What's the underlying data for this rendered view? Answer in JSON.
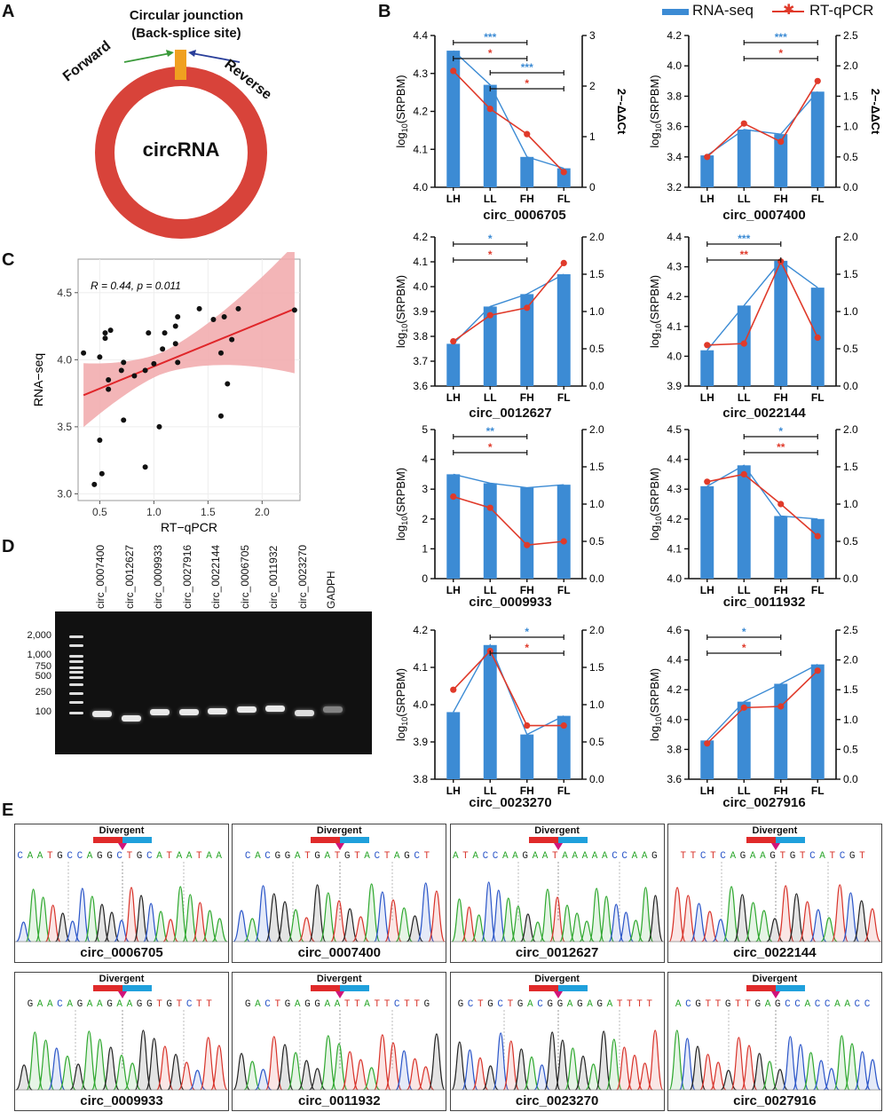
{
  "panels": {
    "A": "A",
    "B": "B",
    "C": "C",
    "D": "D",
    "E": "E"
  },
  "panelA": {
    "title1": "Circular jounction",
    "title2": "(Back-splice site)",
    "forward": "Forward",
    "reverse": "Reverse",
    "center": "circRNA",
    "colors": {
      "ring": "#d8433a",
      "site": "#f0a020",
      "forward": "#3a9a3a",
      "reverse": "#2a3f9a"
    }
  },
  "legend": {
    "rnaseq": "RNA-seq",
    "rtqpcr": "RT-qPCR"
  },
  "colors": {
    "bar": "#3c8bd4",
    "line": "#e03a2a",
    "sigBlue": "#3c8bd4",
    "sigRed": "#e03a2a"
  },
  "chart_data": [
    {
      "type": "bar+line",
      "title": "circ_0006705",
      "categories": [
        "LH",
        "LL",
        "FH",
        "FL"
      ],
      "ylabel": "log10(SRPBM)",
      "y2label": "2^-ΔΔCt",
      "show_y2label": true,
      "ylim": [
        4.0,
        4.4
      ],
      "yticks": [
        "4.0",
        "4.1",
        "4.2",
        "4.3",
        "4.4"
      ],
      "y2lim": [
        0,
        3
      ],
      "y2ticks": [
        "0",
        "1",
        "2",
        "3"
      ],
      "bars": [
        4.36,
        4.27,
        4.08,
        4.05
      ],
      "rnaLine": [
        4.36,
        4.27,
        4.08,
        4.05
      ],
      "qpcr": [
        2.3,
        1.55,
        1.05,
        0.3
      ],
      "sig": [
        {
          "from": 0,
          "to": 2,
          "blue": "***",
          "red": "*"
        },
        {
          "from": 1,
          "to": 3,
          "blue": "***",
          "red": "*"
        }
      ]
    },
    {
      "type": "bar+line",
      "title": "circ_0007400",
      "categories": [
        "LH",
        "LL",
        "FH",
        "FL"
      ],
      "ylabel": "log10(SRPBM)",
      "y2label": "2^-ΔΔCt",
      "show_y2label": true,
      "ylim": [
        3.2,
        4.2
      ],
      "yticks": [
        "3.2",
        "3.4",
        "3.6",
        "3.8",
        "4.0",
        "4.2"
      ],
      "y2lim": [
        0,
        2.5
      ],
      "y2ticks": [
        "0.0",
        "0.5",
        "1.0",
        "1.5",
        "2.0",
        "2.5"
      ],
      "bars": [
        3.41,
        3.58,
        3.55,
        3.83
      ],
      "rnaLine": [
        3.41,
        3.58,
        3.55,
        3.83
      ],
      "qpcr": [
        0.5,
        1.05,
        0.75,
        1.75
      ],
      "sig": [
        {
          "from": 1,
          "to": 3,
          "blue": "***",
          "red": "*"
        }
      ]
    },
    {
      "type": "bar+line",
      "title": "circ_0012627",
      "categories": [
        "LH",
        "LL",
        "FH",
        "FL"
      ],
      "ylabel": "log10(SRPBM)",
      "y2label": "",
      "show_y2label": false,
      "ylim": [
        3.6,
        4.2
      ],
      "yticks": [
        "3.6",
        "3.7",
        "3.8",
        "3.9",
        "4.0",
        "4.1",
        "4.2"
      ],
      "y2lim": [
        0,
        2.0
      ],
      "y2ticks": [
        "0.0",
        "0.5",
        "1.0",
        "1.5",
        "2.0"
      ],
      "bars": [
        3.77,
        3.92,
        3.97,
        4.05
      ],
      "rnaLine": [
        3.77,
        3.92,
        3.97,
        4.05
      ],
      "qpcr": [
        0.6,
        0.95,
        1.05,
        1.65
      ],
      "sig": [
        {
          "from": 0,
          "to": 2,
          "blue": "*",
          "red": "*"
        }
      ]
    },
    {
      "type": "bar+line",
      "title": "circ_0022144",
      "categories": [
        "LH",
        "LL",
        "FH",
        "FL"
      ],
      "ylabel": "log10(SRPBM)",
      "y2label": "",
      "show_y2label": false,
      "ylim": [
        3.9,
        4.4
      ],
      "yticks": [
        "3.9",
        "4.0",
        "4.1",
        "4.2",
        "4.3",
        "4.4"
      ],
      "y2lim": [
        0,
        2.0
      ],
      "y2ticks": [
        "0.0",
        "0.5",
        "1.0",
        "1.5",
        "2.0"
      ],
      "bars": [
        4.02,
        4.17,
        4.32,
        4.23
      ],
      "rnaLine": [
        4.02,
        4.17,
        4.32,
        4.23
      ],
      "qpcr": [
        0.55,
        0.57,
        1.67,
        0.65
      ],
      "sig": [
        {
          "from": 0,
          "to": 2,
          "blue": "***",
          "red": "**"
        }
      ]
    },
    {
      "type": "bar+line",
      "title": "circ_0009933",
      "categories": [
        "LH",
        "LL",
        "FH",
        "FL"
      ],
      "ylabel": "log10(SRPBM)",
      "y2label": "",
      "show_y2label": false,
      "ylim": [
        0,
        5
      ],
      "yticks": [
        "0",
        "1",
        "2",
        "3",
        "4",
        "5"
      ],
      "y2lim": [
        0,
        2.0
      ],
      "y2ticks": [
        "0.0",
        "0.5",
        "1.0",
        "1.5",
        "2.0"
      ],
      "bars": [
        3.5,
        3.2,
        3.05,
        3.15
      ],
      "rnaLine": [
        3.5,
        3.2,
        3.05,
        3.15
      ],
      "qpcr": [
        1.1,
        0.95,
        0.45,
        0.5
      ],
      "sig": [
        {
          "from": 0,
          "to": 2,
          "blue": "**",
          "red": "*"
        }
      ]
    },
    {
      "type": "bar+line",
      "title": "circ_0011932",
      "categories": [
        "LH",
        "LL",
        "FH",
        "FL"
      ],
      "ylabel": "log10(SRPBM)",
      "y2label": "",
      "show_y2label": false,
      "ylim": [
        4.0,
        4.5
      ],
      "yticks": [
        "4.0",
        "4.1",
        "4.2",
        "4.3",
        "4.4",
        "4.5"
      ],
      "y2lim": [
        0,
        2.0
      ],
      "y2ticks": [
        "0.0",
        "0.5",
        "1.0",
        "1.5",
        "2.0"
      ],
      "bars": [
        4.31,
        4.38,
        4.21,
        4.2
      ],
      "rnaLine": [
        4.31,
        4.38,
        4.21,
        4.2
      ],
      "qpcr": [
        1.3,
        1.4,
        1.0,
        0.57
      ],
      "sig": [
        {
          "from": 1,
          "to": 3,
          "blue": "*",
          "red": "**"
        }
      ]
    },
    {
      "type": "bar+line",
      "title": "circ_0023270",
      "categories": [
        "LH",
        "LL",
        "FH",
        "FL"
      ],
      "ylabel": "log10(SRPBM)",
      "y2label": "",
      "show_y2label": false,
      "ylim": [
        3.8,
        4.2
      ],
      "yticks": [
        "3.8",
        "3.9",
        "4.0",
        "4.1",
        "4.2"
      ],
      "y2lim": [
        0,
        2.0
      ],
      "y2ticks": [
        "0.0",
        "0.5",
        "1.0",
        "1.5",
        "2.0"
      ],
      "bars": [
        3.98,
        4.16,
        3.92,
        3.97
      ],
      "rnaLine": [
        3.98,
        4.16,
        3.92,
        3.97
      ],
      "qpcr": [
        1.2,
        1.72,
        0.72,
        0.72
      ],
      "sig": [
        {
          "from": 1,
          "to": 3,
          "blue": "*",
          "red": "*"
        }
      ]
    },
    {
      "type": "bar+line",
      "title": "circ_0027916",
      "categories": [
        "LH",
        "LL",
        "FH",
        "FL"
      ],
      "ylabel": "log10(SRPBM)",
      "y2label": "",
      "show_y2label": false,
      "ylim": [
        3.6,
        4.6
      ],
      "yticks": [
        "3.6",
        "3.8",
        "4.0",
        "4.2",
        "4.4",
        "4.6"
      ],
      "y2lim": [
        0,
        2.5
      ],
      "y2ticks": [
        "0.0",
        "0.5",
        "1.0",
        "1.5",
        "2.0",
        "2.5"
      ],
      "bars": [
        3.86,
        4.12,
        4.24,
        4.37
      ],
      "rnaLine": [
        3.86,
        4.12,
        4.24,
        4.37
      ],
      "qpcr": [
        0.6,
        1.2,
        1.22,
        1.82
      ],
      "sig": [
        {
          "from": 0,
          "to": 2,
          "blue": "*",
          "red": "*"
        }
      ]
    },
    {
      "type": "scatter",
      "title": "",
      "xlabel": "RT−qPCR",
      "ylabel": "RNA−seq",
      "annotation": "R = 0.44, p = 0.011",
      "xlim": [
        0.3,
        2.35
      ],
      "ylim": [
        2.95,
        4.75
      ],
      "xticks": [
        "0.5",
        "1.0",
        "1.5",
        "2.0"
      ],
      "yticks": [
        "3.0",
        "3.5",
        "4.0",
        "4.5"
      ],
      "fit": {
        "intercept": 3.62,
        "slope": 0.33
      },
      "points": [
        [
          0.35,
          4.05
        ],
        [
          0.45,
          3.07
        ],
        [
          0.5,
          3.4
        ],
        [
          0.52,
          3.15
        ],
        [
          0.5,
          4.02
        ],
        [
          0.55,
          4.2
        ],
        [
          0.55,
          4.16
        ],
        [
          0.6,
          4.22
        ],
        [
          0.58,
          3.78
        ],
        [
          0.58,
          3.85
        ],
        [
          0.7,
          3.92
        ],
        [
          0.72,
          3.55
        ],
        [
          0.72,
          3.98
        ],
        [
          0.82,
          3.88
        ],
        [
          0.92,
          3.2
        ],
        [
          0.92,
          3.92
        ],
        [
          0.95,
          4.2
        ],
        [
          1.0,
          3.97
        ],
        [
          1.05,
          3.5
        ],
        [
          1.08,
          4.08
        ],
        [
          1.1,
          4.2
        ],
        [
          1.2,
          4.12
        ],
        [
          1.2,
          4.25
        ],
        [
          1.22,
          4.32
        ],
        [
          1.22,
          3.98
        ],
        [
          1.42,
          4.38
        ],
        [
          1.55,
          4.3
        ],
        [
          1.62,
          3.58
        ],
        [
          1.62,
          4.05
        ],
        [
          1.65,
          4.32
        ],
        [
          1.68,
          3.82
        ],
        [
          1.72,
          4.15
        ],
        [
          1.78,
          4.38
        ],
        [
          2.3,
          4.37
        ]
      ]
    }
  ],
  "gel": {
    "lanes": [
      "circ_0007400",
      "circ_0012627",
      "circ_0009933",
      "circ_0027916",
      "circ_0022144",
      "circ_0006705",
      "circ_0011932",
      "circ_0023270",
      "GADPH"
    ],
    "ladder": [
      "2,000",
      "1,000",
      "750",
      "500",
      "250",
      "100"
    ]
  },
  "sequencing": {
    "divergent_label": "Divergent",
    "items": [
      {
        "name": "circ_0006705",
        "seq": "CAATGCCAGGCTGCATAATAA"
      },
      {
        "name": "circ_0007400",
        "seq": "CACGGATGATGTACTAGCT"
      },
      {
        "name": "circ_0012627",
        "seq": "ATACCAAGAATAAAAACCAAG"
      },
      {
        "name": "circ_0022144",
        "seq": "TTCTCAGAAGTGTCATCGT"
      },
      {
        "name": "circ_0009933",
        "seq": "GAACAGAAGAAGGTGTCTT"
      },
      {
        "name": "circ_0011932",
        "seq": "GACTGAGGAATTATTCTTG"
      },
      {
        "name": "circ_0023270",
        "seq": "GCTGCTGACGGAGAGATTTT"
      },
      {
        "name": "circ_0027916",
        "seq": "ACGTTGTTGAGCCACCAACC"
      }
    ]
  }
}
